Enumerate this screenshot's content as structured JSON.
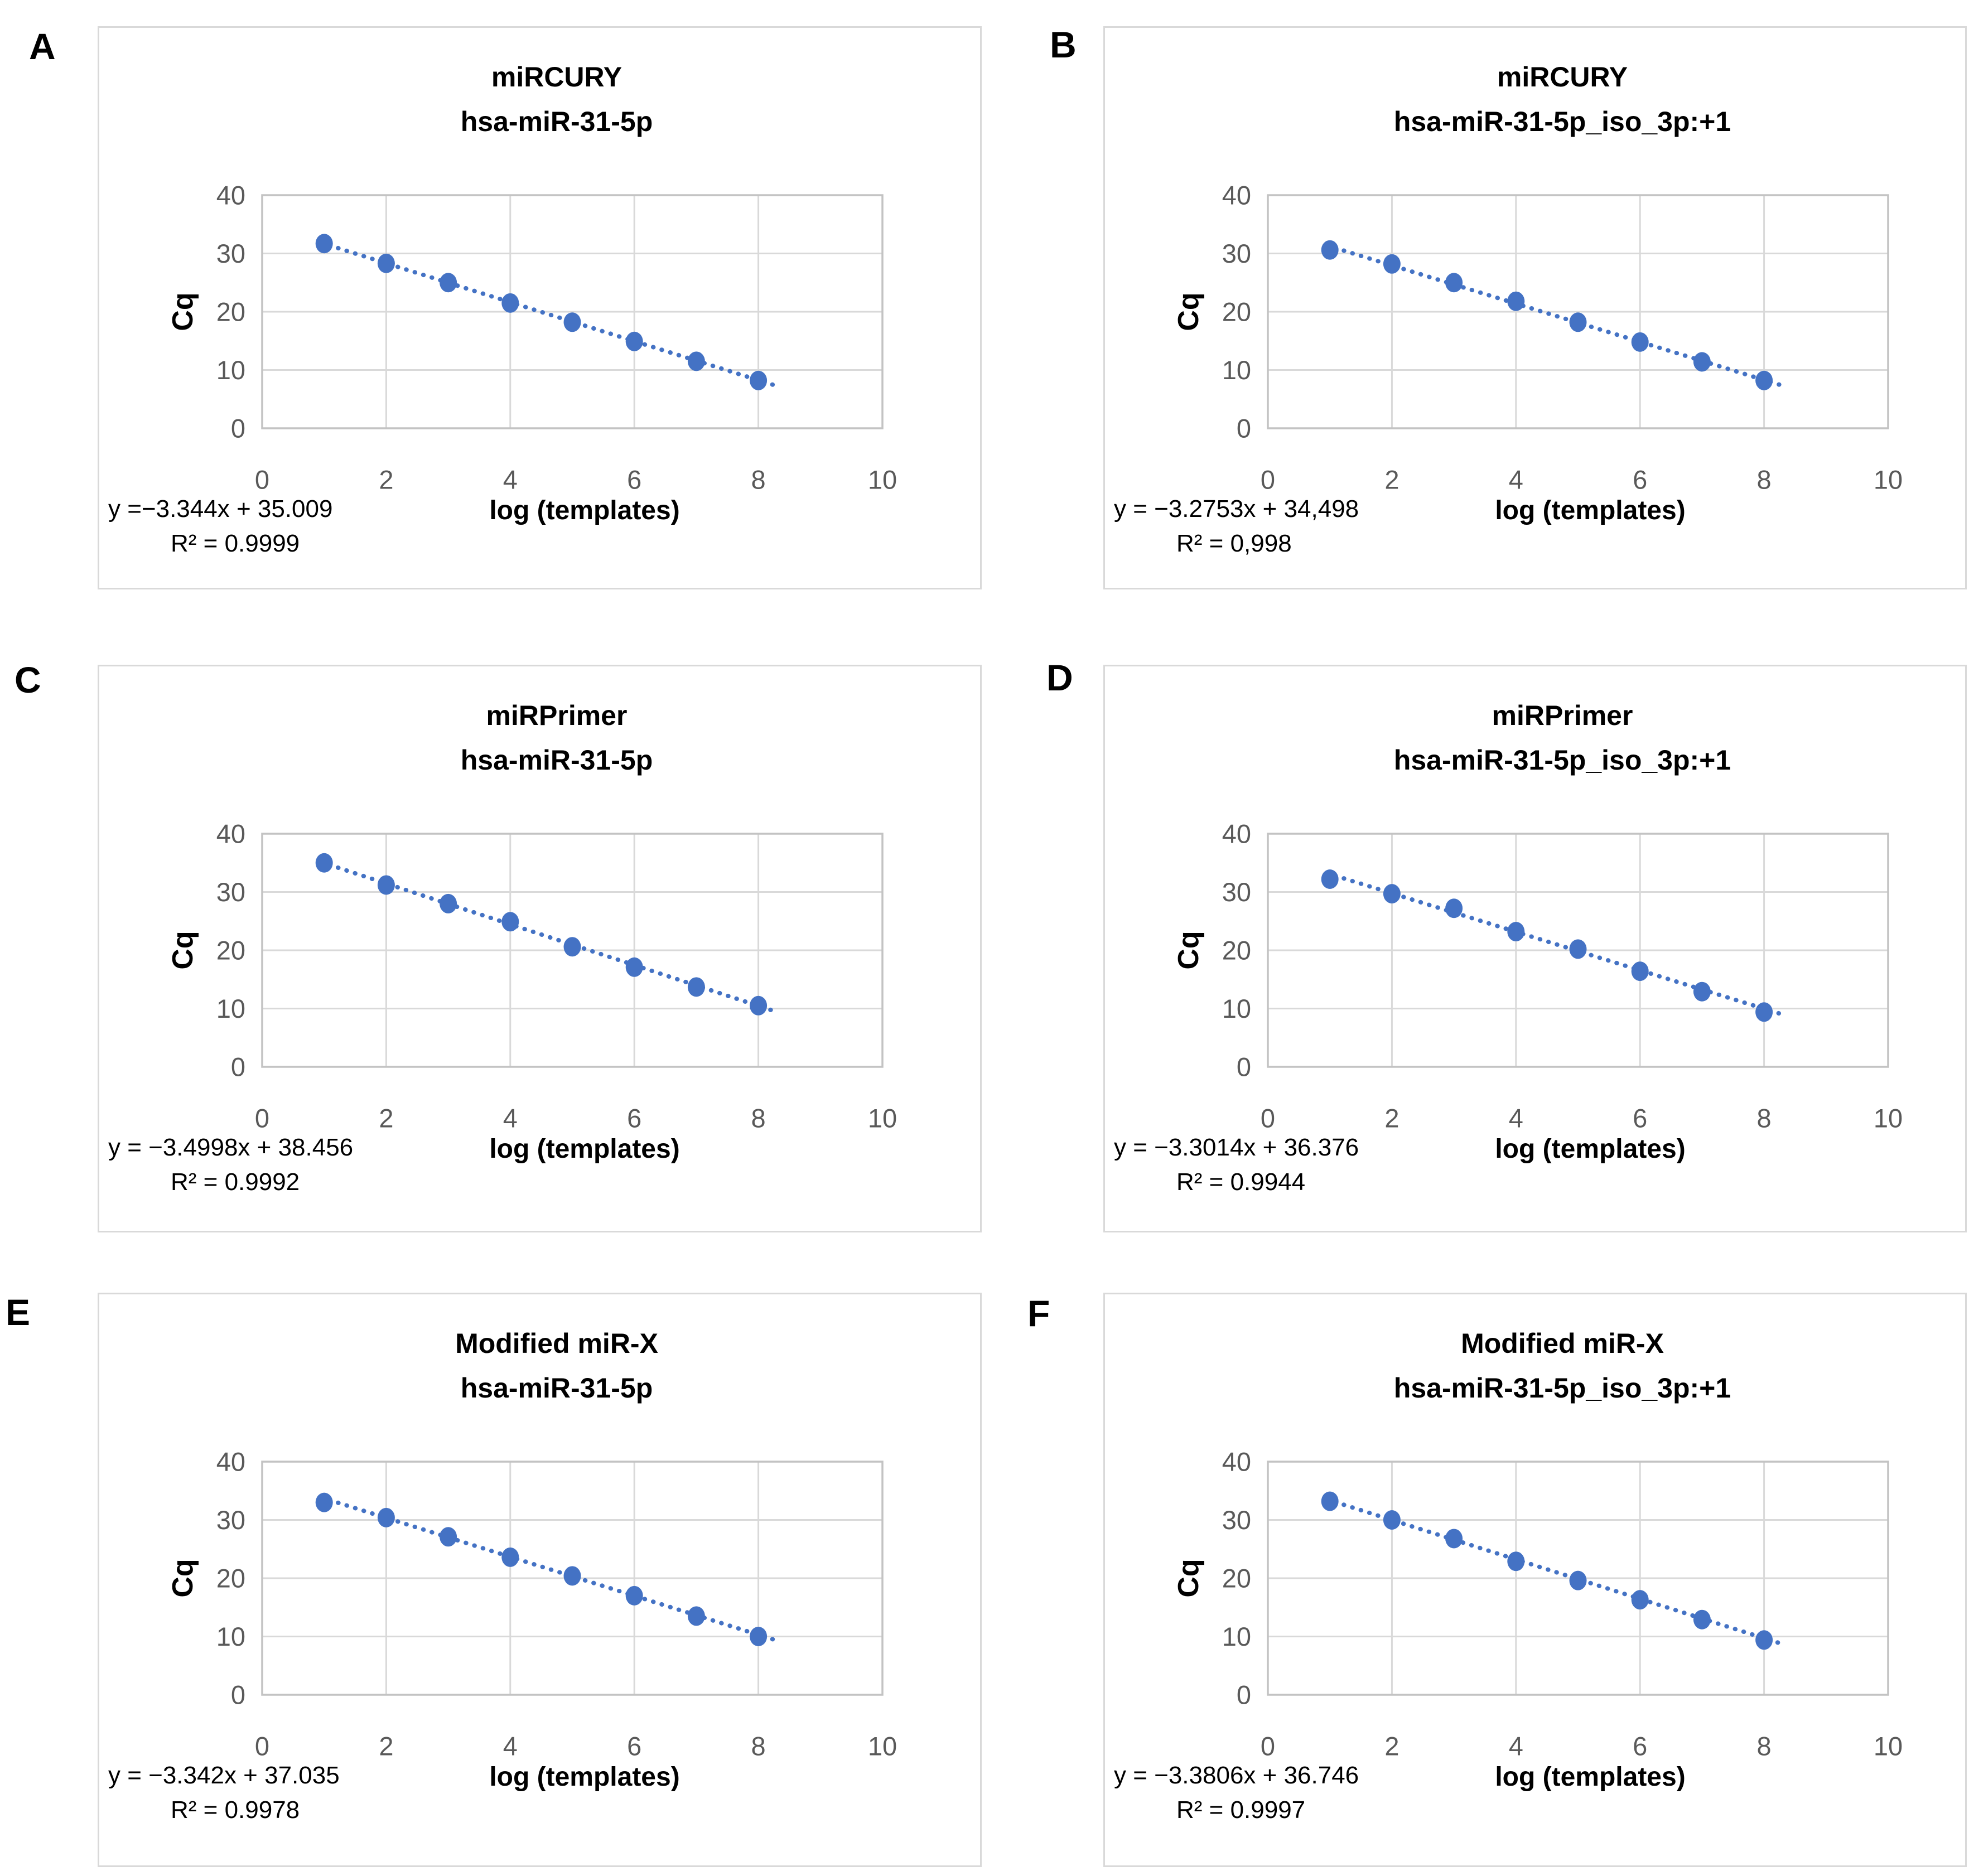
{
  "page": {
    "background": "#ffffff"
  },
  "colors": {
    "marker": "#4472c4",
    "trendline": "#4472c4",
    "gridline": "#d9d9d9",
    "plot_border": "#c3c3c3",
    "tick_label": "#595959",
    "text": "#000000",
    "panel_border": "#d9d9d9"
  },
  "chart_data": [
    {
      "type": "scatter",
      "panel_label": "A",
      "title": "miRCURY",
      "subtitle": "hsa-miR-31-5p",
      "xlabel": "log (templates)",
      "ylabel": "Cq",
      "xlim": [
        0,
        10
      ],
      "ylim": [
        0,
        40
      ],
      "x_ticks": [
        0,
        2,
        4,
        6,
        8,
        10
      ],
      "y_ticks": [
        0,
        10,
        20,
        30,
        40
      ],
      "grid": true,
      "legend": false,
      "x": [
        1,
        2,
        3,
        4,
        5,
        6,
        7,
        8
      ],
      "y": [
        31.7,
        28.3,
        25.0,
        21.5,
        18.2,
        14.9,
        11.5,
        8.2
      ],
      "trendline": {
        "slope": -3.344,
        "intercept": 35.009,
        "style": "dotted"
      },
      "equation_text": "y =−3.344x + 35.009",
      "r2_text": "R² = 0.9999"
    },
    {
      "type": "scatter",
      "panel_label": "B",
      "title": "miRCURY",
      "subtitle": "hsa-miR-31-5p_iso_3p:+1",
      "xlabel": "log (templates)",
      "ylabel": "Cq",
      "xlim": [
        0,
        10
      ],
      "ylim": [
        0,
        40
      ],
      "x_ticks": [
        0,
        2,
        4,
        6,
        8,
        10
      ],
      "y_ticks": [
        0,
        10,
        20,
        30,
        40
      ],
      "grid": true,
      "legend": false,
      "x": [
        1,
        2,
        3,
        4,
        5,
        6,
        7,
        8
      ],
      "y": [
        30.6,
        28.2,
        25.0,
        21.8,
        18.2,
        14.8,
        11.4,
        8.2
      ],
      "trendline": {
        "slope": -3.2753,
        "intercept": 34.498,
        "style": "dotted"
      },
      "equation_text": "y = −3.2753x + 34,498",
      "r2_text": "R² = 0,998"
    },
    {
      "type": "scatter",
      "panel_label": "C",
      "title": "miRPrimer",
      "subtitle": "hsa-miR-31-5p",
      "xlabel": "log (templates)",
      "ylabel": "Cq",
      "xlim": [
        0,
        10
      ],
      "ylim": [
        0,
        40
      ],
      "x_ticks": [
        0,
        2,
        4,
        6,
        8,
        10
      ],
      "y_ticks": [
        0,
        10,
        20,
        30,
        40
      ],
      "grid": true,
      "legend": false,
      "x": [
        1,
        2,
        3,
        4,
        5,
        6,
        7,
        8
      ],
      "y": [
        35.0,
        31.2,
        28.0,
        24.9,
        20.6,
        17.1,
        13.7,
        10.5
      ],
      "trendline": {
        "slope": -3.4998,
        "intercept": 38.456,
        "style": "dotted"
      },
      "equation_text": "y = −3.4998x + 38.456",
      "r2_text": "R² = 0.9992"
    },
    {
      "type": "scatter",
      "panel_label": "D",
      "title": "miRPrimer",
      "subtitle": "hsa-miR-31-5p_iso_3p:+1",
      "xlabel": "log (templates)",
      "ylabel": "Cq",
      "xlim": [
        0,
        10
      ],
      "ylim": [
        0,
        40
      ],
      "x_ticks": [
        0,
        2,
        4,
        6,
        8,
        10
      ],
      "y_ticks": [
        0,
        10,
        20,
        30,
        40
      ],
      "grid": true,
      "legend": false,
      "x": [
        1,
        2,
        3,
        4,
        5,
        6,
        7,
        8
      ],
      "y": [
        32.2,
        29.7,
        27.2,
        23.2,
        20.2,
        16.4,
        12.9,
        9.4
      ],
      "trendline": {
        "slope": -3.3014,
        "intercept": 36.376,
        "style": "dotted"
      },
      "equation_text": "y = −3.3014x + 36.376",
      "r2_text": "R² = 0.9944"
    },
    {
      "type": "scatter",
      "panel_label": "E",
      "title": "Modified miR-X",
      "subtitle": "hsa-miR-31-5p",
      "xlabel": "log (templates)",
      "ylabel": "Cq",
      "xlim": [
        0,
        10
      ],
      "ylim": [
        0,
        40
      ],
      "x_ticks": [
        0,
        2,
        4,
        6,
        8,
        10
      ],
      "y_ticks": [
        0,
        10,
        20,
        30,
        40
      ],
      "grid": true,
      "legend": false,
      "x": [
        1,
        2,
        3,
        4,
        5,
        6,
        7,
        8
      ],
      "y": [
        33.0,
        30.4,
        27.1,
        23.6,
        20.4,
        17.0,
        13.5,
        10.0
      ],
      "trendline": {
        "slope": -3.342,
        "intercept": 37.035,
        "style": "dotted"
      },
      "equation_text": "y = −3.342x + 37.035",
      "r2_text": "R² = 0.9978"
    },
    {
      "type": "scatter",
      "panel_label": "F",
      "title": "Modified miR-X",
      "subtitle": "hsa-miR-31-5p_iso_3p:+1",
      "xlabel": "log (templates)",
      "ylabel": "Cq",
      "xlim": [
        0,
        10
      ],
      "ylim": [
        0,
        40
      ],
      "x_ticks": [
        0,
        2,
        4,
        6,
        8,
        10
      ],
      "y_ticks": [
        0,
        10,
        20,
        30,
        40
      ],
      "grid": true,
      "legend": false,
      "x": [
        1,
        2,
        3,
        4,
        5,
        6,
        7,
        8
      ],
      "y": [
        33.2,
        30.0,
        26.8,
        22.9,
        19.6,
        16.3,
        12.9,
        9.4
      ],
      "trendline": {
        "slope": -3.3806,
        "intercept": 36.746,
        "style": "dotted"
      },
      "equation_text": "y = −3.3806x + 36.746",
      "r2_text": "R² = 0.9997"
    }
  ]
}
